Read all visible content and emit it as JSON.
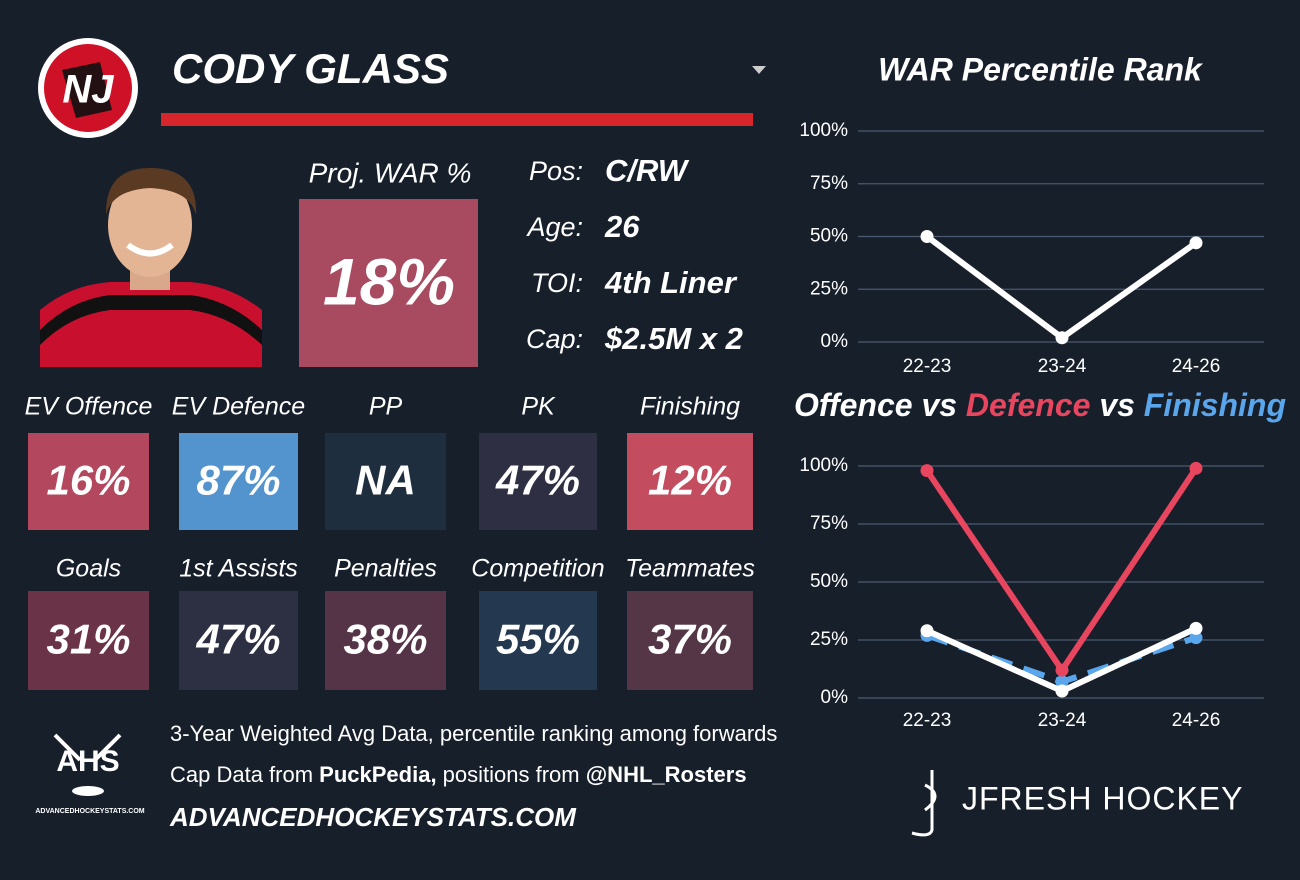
{
  "header": {
    "name": "CODY GLASS"
  },
  "proj_war": {
    "label": "Proj. WAR %",
    "value": "18%",
    "color": "#a84a60"
  },
  "info": [
    {
      "label": "Pos:",
      "value": "C/RW"
    },
    {
      "label": "Age:",
      "value": "26"
    },
    {
      "label": "TOI:",
      "value": "4th Liner"
    },
    {
      "label": "Cap:",
      "value": "$2.5M x 2"
    }
  ],
  "tiles": [
    {
      "label": "EV Offence",
      "value": "16%",
      "color": "#b2475e"
    },
    {
      "label": "EV Defence",
      "value": "87%",
      "color": "#5394cf"
    },
    {
      "label": "PP",
      "value": "NA",
      "color": "#1f2e3e"
    },
    {
      "label": "PK",
      "value": "47%",
      "color": "#2e2f43"
    },
    {
      "label": "Finishing",
      "value": "12%",
      "color": "#c34c5f"
    },
    {
      "label": "Goals",
      "value": "31%",
      "color": "#6b3347"
    },
    {
      "label": "1st Assists",
      "value": "47%",
      "color": "#2d2f42"
    },
    {
      "label": "Penalties",
      "value": "38%",
      "color": "#553448"
    },
    {
      "label": "Competition",
      "value": "55%",
      "color": "#24384f"
    },
    {
      "label": "Teammates",
      "value": "37%",
      "color": "#553647"
    }
  ],
  "footer": {
    "note": "3-Year Weighted Avg Data, percentile ranking among forwards",
    "source_parts": [
      "Cap Data from ",
      "PuckPedia,",
      " positions from ",
      "@NHL_Rosters"
    ],
    "site": "ADVANCEDHOCKEYSTATS.COM"
  },
  "logos": {
    "ahs": "AHS",
    "ahs_url": "ADVANCEDHOCKEYSTATS.COM",
    "brand": "JFRESH HOCKEY"
  },
  "chart_data": [
    {
      "type": "line",
      "title": "WAR Percentile Rank",
      "categories": [
        "22-23",
        "23-24",
        "24-26"
      ],
      "series": [
        {
          "name": "WAR",
          "color": "#ffffff",
          "values": [
            50,
            2,
            47
          ]
        }
      ],
      "ylim": [
        0,
        100
      ],
      "yticks": [
        {
          "value": 0,
          "label": "0%"
        },
        {
          "value": 25,
          "label": "25%"
        },
        {
          "value": 50,
          "label": "50%"
        },
        {
          "value": 75,
          "label": "75%"
        },
        {
          "value": 100,
          "label": "100%"
        }
      ],
      "grid": true
    },
    {
      "type": "line",
      "title_connector": "vs",
      "categories": [
        "22-23",
        "23-24",
        "24-26"
      ],
      "series": [
        {
          "name": "Offence",
          "color": "#ffffff",
          "values": [
            29,
            3,
            30
          ]
        },
        {
          "name": "Defence",
          "color": "#e8455f",
          "values": [
            98,
            12,
            99
          ]
        },
        {
          "name": "Finishing",
          "color": "#5aa6ec",
          "values": [
            27,
            7,
            26
          ],
          "dashed": true
        }
      ],
      "ylim": [
        0,
        100
      ],
      "yticks": [
        {
          "value": 0,
          "label": "0%"
        },
        {
          "value": 25,
          "label": "25%"
        },
        {
          "value": 50,
          "label": "50%"
        },
        {
          "value": 75,
          "label": "75%"
        },
        {
          "value": 100,
          "label": "100%"
        }
      ],
      "grid": true
    }
  ]
}
